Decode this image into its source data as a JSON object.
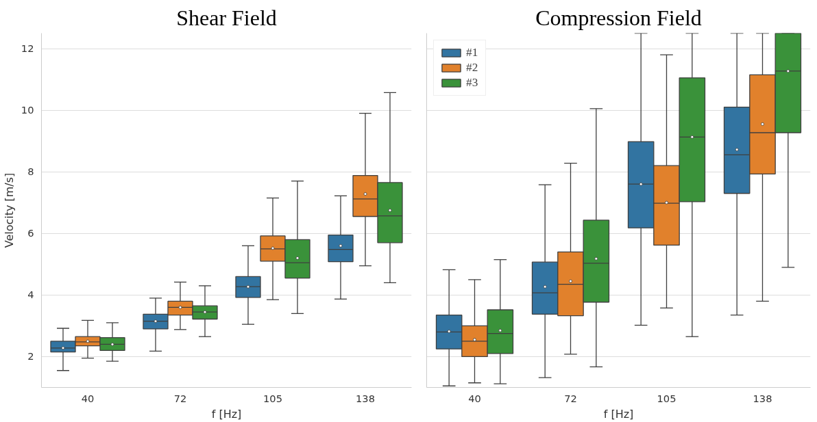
{
  "chart_data": [
    {
      "type": "box",
      "title": "Shear Field",
      "xlabel": "f [Hz]",
      "ylabel": "Velocity [m/s]",
      "categories": [
        "40",
        "72",
        "105",
        "138"
      ],
      "ylim": [
        1,
        12.5
      ],
      "yticks": [
        2,
        4,
        6,
        8,
        10,
        12
      ],
      "grid": "y",
      "legend": false,
      "series": [
        {
          "color": "#3274a1",
          "boxes": [
            {
              "low": 1.55,
              "q1": 2.15,
              "median": 2.28,
              "q3": 2.5,
              "high": 2.92,
              "mean": 2.28
            },
            {
              "low": 2.18,
              "q1": 2.9,
              "median": 3.15,
              "q3": 3.38,
              "high": 3.9,
              "mean": 3.15
            },
            {
              "low": 3.05,
              "q1": 3.92,
              "median": 4.27,
              "q3": 4.6,
              "high": 5.6,
              "mean": 4.27
            },
            {
              "low": 3.87,
              "q1": 5.08,
              "median": 5.48,
              "q3": 5.95,
              "high": 7.22,
              "mean": 5.6
            }
          ]
        },
        {
          "color": "#e1812c",
          "boxes": [
            {
              "low": 1.95,
              "q1": 2.35,
              "median": 2.48,
              "q3": 2.65,
              "high": 3.18,
              "mean": 2.5
            },
            {
              "low": 2.88,
              "q1": 3.35,
              "median": 3.6,
              "q3": 3.8,
              "high": 4.42,
              "mean": 3.6
            },
            {
              "low": 3.85,
              "q1": 5.1,
              "median": 5.5,
              "q3": 5.92,
              "high": 7.15,
              "mean": 5.52
            },
            {
              "low": 4.95,
              "q1": 6.55,
              "median": 7.12,
              "q3": 7.88,
              "high": 9.9,
              "mean": 7.28
            }
          ]
        },
        {
          "color": "#3a923a",
          "boxes": [
            {
              "low": 1.85,
              "q1": 2.2,
              "median": 2.4,
              "q3": 2.62,
              "high": 3.1,
              "mean": 2.4
            },
            {
              "low": 2.65,
              "q1": 3.22,
              "median": 3.45,
              "q3": 3.65,
              "high": 4.3,
              "mean": 3.45
            },
            {
              "low": 3.4,
              "q1": 4.55,
              "median": 5.05,
              "q3": 5.8,
              "high": 7.7,
              "mean": 5.2
            },
            {
              "low": 4.4,
              "q1": 5.7,
              "median": 6.57,
              "q3": 7.65,
              "high": 10.57,
              "mean": 6.75
            }
          ]
        }
      ]
    },
    {
      "type": "box",
      "title": "Compression Field",
      "xlabel": "f [Hz]",
      "categories": [
        "40",
        "72",
        "105",
        "138"
      ],
      "ylim": [
        1,
        12.5
      ],
      "yticks": [
        2,
        4,
        6,
        8,
        10,
        12
      ],
      "tick_labels": "x",
      "grid": "y",
      "legend": "top left",
      "series": [
        {
          "name": "#1",
          "color": "#3274a1",
          "boxes": [
            {
              "low": 1.05,
              "q1": 2.25,
              "median": 2.8,
              "q3": 3.35,
              "high": 4.82,
              "mean": 2.82
            },
            {
              "low": 1.32,
              "q1": 3.38,
              "median": 4.07,
              "q3": 5.07,
              "high": 7.58,
              "mean": 4.27
            },
            {
              "low": 3.02,
              "q1": 6.18,
              "median": 7.6,
              "q3": 8.98,
              "high": 12.5,
              "mean": 7.6
            },
            {
              "low": 3.35,
              "q1": 7.3,
              "median": 8.55,
              "q3": 10.1,
              "high": 12.5,
              "mean": 8.72
            }
          ]
        },
        {
          "name": "#2",
          "color": "#e1812c",
          "boxes": [
            {
              "low": 1.15,
              "q1": 2.0,
              "median": 2.5,
              "q3": 3.0,
              "high": 4.5,
              "mean": 2.55
            },
            {
              "low": 2.08,
              "q1": 3.33,
              "median": 4.35,
              "q3": 5.4,
              "high": 8.28,
              "mean": 4.45
            },
            {
              "low": 3.58,
              "q1": 5.62,
              "median": 6.98,
              "q3": 8.2,
              "high": 11.8,
              "mean": 7.0
            },
            {
              "low": 3.8,
              "q1": 7.93,
              "median": 9.27,
              "q3": 11.15,
              "high": 12.5,
              "mean": 9.55
            }
          ]
        },
        {
          "name": "#3",
          "color": "#3a923a",
          "boxes": [
            {
              "low": 1.12,
              "q1": 2.1,
              "median": 2.75,
              "q3": 3.52,
              "high": 5.15,
              "mean": 2.85
            },
            {
              "low": 1.67,
              "q1": 3.77,
              "median": 5.03,
              "q3": 6.43,
              "high": 10.05,
              "mean": 5.18
            },
            {
              "low": 2.65,
              "q1": 7.03,
              "median": 9.13,
              "q3": 11.05,
              "high": 12.5,
              "mean": 9.13
            },
            {
              "low": 4.9,
              "q1": 9.27,
              "median": 11.27,
              "q3": 12.5,
              "high": 12.5,
              "mean": 11.27
            }
          ]
        }
      ]
    }
  ]
}
